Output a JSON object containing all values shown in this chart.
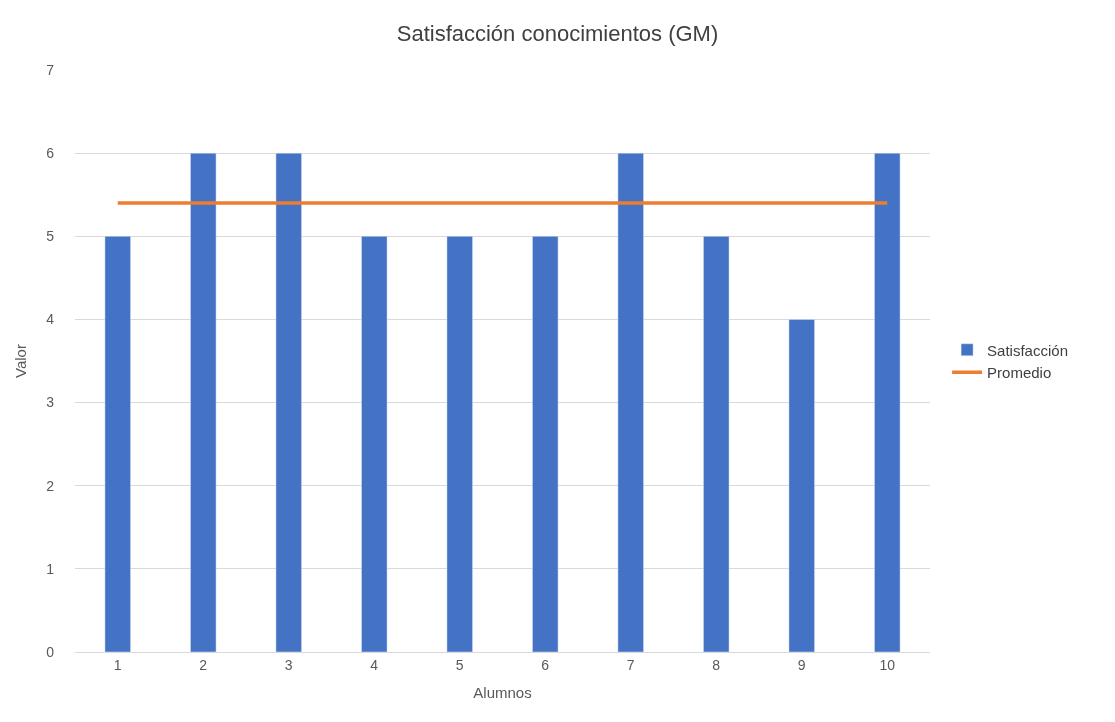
{
  "chart_data": {
    "type": "bar",
    "title": "Satisfacción conocimientos (GM)",
    "xlabel": "Alumnos",
    "ylabel": "Valor",
    "categories": [
      "1",
      "2",
      "3",
      "4",
      "5",
      "6",
      "7",
      "8",
      "9",
      "10"
    ],
    "series": [
      {
        "name": "Satisfacción",
        "color": "#4472c4",
        "values": [
          5,
          6,
          6,
          5,
          5,
          5,
          6,
          5,
          4,
          6
        ]
      },
      {
        "name": "Promedio",
        "type": "line",
        "color": "#ed7d31",
        "values": [
          5.4,
          5.4,
          5.4,
          5.4,
          5.4,
          5.4,
          5.4,
          5.4,
          5.4,
          5.4
        ],
        "marker": "none",
        "line_style": "solid"
      }
    ],
    "ylim": [
      0,
      7
    ],
    "yticks": [
      0,
      1,
      2,
      3,
      4,
      5,
      6,
      7
    ],
    "grid": "y",
    "legend": "right"
  }
}
